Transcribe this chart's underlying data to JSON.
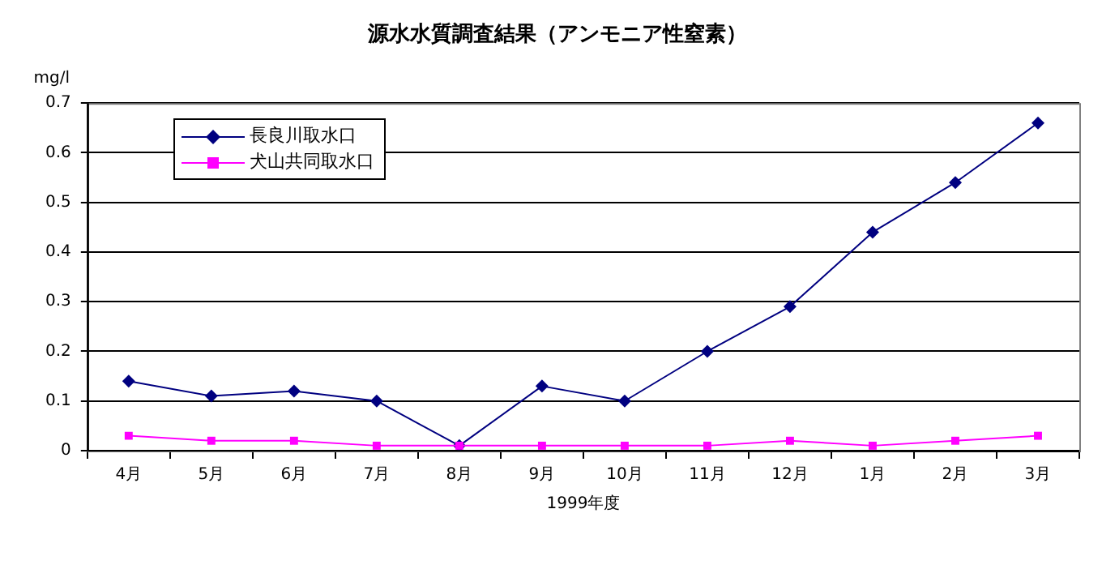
{
  "chart_data": {
    "type": "line",
    "title": "源水水質調査結果（アンモニア性窒素）",
    "xlabel": "1999年度",
    "ylabel": "mg/l",
    "categories": [
      "4月",
      "5月",
      "6月",
      "7月",
      "8月",
      "9月",
      "10月",
      "11月",
      "12月",
      "1月",
      "2月",
      "3月"
    ],
    "ylim": [
      0,
      0.7
    ],
    "yticks": [
      0,
      0.1,
      0.2,
      0.3,
      0.4,
      0.5,
      0.6,
      0.7
    ],
    "grid": "y",
    "legend": "top left",
    "line_style": "solid",
    "series": [
      {
        "name": "長良川取水口",
        "color": "#000080",
        "marker": "diamond",
        "values": [
          0.14,
          0.11,
          0.12,
          0.1,
          0.01,
          0.13,
          0.1,
          0.2,
          0.29,
          0.44,
          0.54,
          0.66
        ]
      },
      {
        "name": "犬山共同取水口",
        "color": "#ff00ff",
        "marker": "square",
        "values": [
          0.03,
          0.02,
          0.02,
          0.01,
          0.01,
          0.01,
          0.01,
          0.01,
          0.02,
          0.01,
          0.02,
          0.03
        ]
      }
    ]
  }
}
